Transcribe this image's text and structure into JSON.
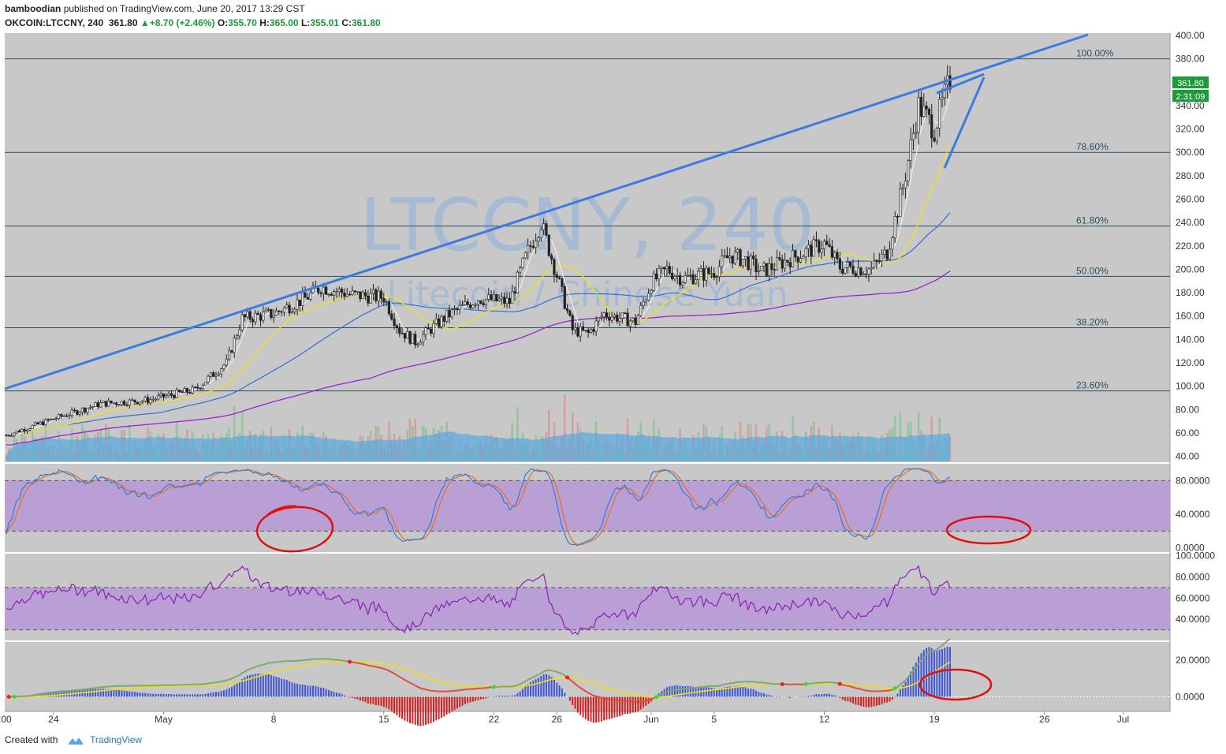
{
  "header": {
    "author": "bamboodian",
    "published_text": "published on TradingView.com, June 20, 2017 13:29 CST",
    "symbol": "OKCOIN:LTCCNY, 240",
    "last": "361.80",
    "change": "+8.70 (+2.46%)",
    "open_label": "O:",
    "open": "355.70",
    "high_label": "H:",
    "high": "365.00",
    "low_label": "L:",
    "low": "355.01",
    "close_label": "C:",
    "close": "361.80"
  },
  "watermark": {
    "main": "LTCCNY, 240",
    "sub": "Litecoin / Chinese Yuan"
  },
  "price_tag": {
    "value": "361.80",
    "countdown": "2:31:09"
  },
  "footer": {
    "created_with": "Created with",
    "brand": "TradingView"
  },
  "colors": {
    "panel_bg": "#c8c8c8",
    "trend_line": "#3d7be0",
    "fib_line": "#2f4f5f",
    "band_fill": "#b798d6",
    "annotation": "#e01010",
    "ma_yellow": "#f2e21a",
    "ma_blue": "#2f6fd8",
    "ma_purple": "#9b21d6"
  },
  "chart_data": {
    "type": "candlestick",
    "symbol": "OKCOIN:LTCCNY",
    "interval": "240",
    "x_ticks": [
      "24",
      "May",
      "8",
      "15",
      "22",
      "26",
      "Jun",
      "5",
      "12",
      "19",
      "26",
      "Jul"
    ],
    "y_ticks": [
      "40.00",
      "60.00",
      "80.00",
      "100.00",
      "120.00",
      "140.00",
      "160.00",
      "180.00",
      "200.00",
      "220.00",
      "240.00",
      "260.00",
      "280.00",
      "300.00",
      "320.00",
      "340.00",
      "380.00",
      "400.00"
    ],
    "ylim": [
      35,
      402
    ],
    "fib_levels": [
      {
        "label": "100.00%",
        "price": 380
      },
      {
        "label": "78.60%",
        "price": 300
      },
      {
        "label": "61.80%",
        "price": 237
      },
      {
        "label": "50.00%",
        "price": 194
      },
      {
        "label": "38.20%",
        "price": 150
      },
      {
        "label": "23.60%",
        "price": 96
      }
    ],
    "price_path": [
      [
        "Apr 21",
        58
      ],
      [
        "Apr 24",
        72
      ],
      [
        "Apr 27",
        85
      ],
      [
        "Apr 30",
        88
      ],
      [
        "May 3",
        97
      ],
      [
        "May 5",
        120
      ],
      [
        "May 6",
        158
      ],
      [
        "May 8",
        162
      ],
      [
        "May 10",
        175
      ],
      [
        "May 11",
        185
      ],
      [
        "May 13",
        178
      ],
      [
        "May 15",
        176
      ],
      [
        "May 16",
        148
      ],
      [
        "May 17",
        138
      ],
      [
        "May 19",
        160
      ],
      [
        "May 21",
        175
      ],
      [
        "May 23",
        172
      ],
      [
        "May 24",
        210
      ],
      [
        "May 25",
        240
      ],
      [
        "May 26",
        195
      ],
      [
        "May 27",
        148
      ],
      [
        "May 28",
        145
      ],
      [
        "May 29",
        162
      ],
      [
        "May 31",
        155
      ],
      [
        "Jun 1",
        188
      ],
      [
        "Jun 2",
        200
      ],
      [
        "Jun 3",
        192
      ],
      [
        "Jun 5",
        198
      ],
      [
        "Jun 6",
        212
      ],
      [
        "Jun 7",
        208
      ],
      [
        "Jun 8",
        198
      ],
      [
        "Jun 10",
        210
      ],
      [
        "Jun 12",
        222
      ],
      [
        "Jun 13",
        202
      ],
      [
        "Jun 15",
        200
      ],
      [
        "Jun 16",
        215
      ],
      [
        "Jun 17",
        270
      ],
      [
        "Jun 18",
        340
      ],
      [
        "Jun 19",
        320
      ],
      [
        "Jun 20",
        361.8
      ]
    ],
    "moving_averages": [
      {
        "color": "yellow",
        "end": 292
      },
      {
        "color": "blue",
        "end": 236
      },
      {
        "color": "purple",
        "end": 213
      }
    ],
    "stochastic": {
      "y_ticks": [
        "80.0000",
        "40.0000",
        "0.0000"
      ],
      "band": [
        20,
        80
      ],
      "ylim": [
        -5,
        100
      ]
    },
    "rsi": {
      "y_ticks": [
        "100.0000",
        "80.0000",
        "60.0000",
        "40.0000"
      ],
      "band": [
        30,
        70
      ],
      "ylim": [
        20,
        102
      ]
    },
    "macd": {
      "y_ticks": [
        "20.0000",
        "0.0000"
      ],
      "ylim": [
        -8,
        30
      ]
    }
  }
}
